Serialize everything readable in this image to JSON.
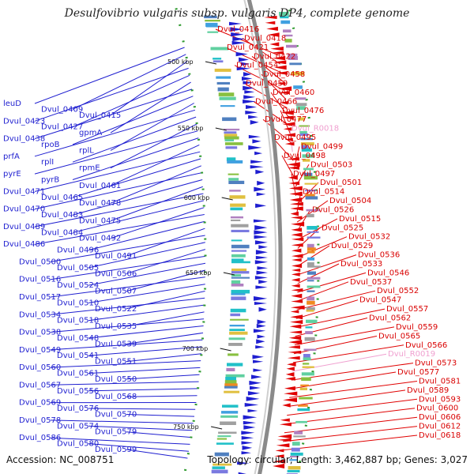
{
  "title": "Desulfovibrio vulgaris subsp. vulgaris DP4, complete genome",
  "footer": {
    "accession": "Accession: NC_008751",
    "topology": "Topology: circular; Length: 3,462,887 bp; Genes: 3,027"
  },
  "ticks": [
    "500 kbp",
    "550 kbp",
    "600 kbp",
    "650 kbp",
    "700 kbp",
    "750 kbp"
  ],
  "labels_left": [
    "leuD",
    "Dvul_0409",
    "Dvul_0415",
    "Dvul_0423",
    "Dvul_0427",
    "gpmA",
    "Dvul_0438",
    "rpoB",
    "rplL",
    "prfA",
    "rplI",
    "rpmE",
    "pyrE",
    "pyrB",
    "Dvul_0461",
    "Dvul_0471",
    "Dvul_0465",
    "Dvul_0478",
    "Dvul_0470",
    "Dvul_0483",
    "Dvul_0475",
    "Dvul_0489",
    "Dvul_0484",
    "Dvul_0492",
    "Dvul_0486",
    "Dvul_0496",
    "Dvul_0491",
    "Dvul_0500",
    "Dvul_0505",
    "Dvul_0506",
    "Dvul_0516",
    "Dvul_0524",
    "Dvul_0507",
    "Dvul_0517",
    "Dvul_0510",
    "Dvul_0522",
    "Dvul_0534",
    "Dvul_0518",
    "Dvul_0535",
    "Dvul_0538",
    "Dvul_0548",
    "Dvul_0539",
    "Dvul_0549",
    "Dvul_0541",
    "Dvul_0551",
    "Dvul_0560",
    "Dvul_0561",
    "Dvul_0550",
    "Dvul_0567",
    "Dvul_0556",
    "Dvul_0568",
    "Dvul_0569",
    "Dvul_0576",
    "Dvul_0570",
    "Dvul_0578",
    "Dvul_0574",
    "Dvul_0579",
    "Dvul_0586",
    "Dvul_0580",
    "Dvul_0599"
  ],
  "labels_right": [
    "Dvul_0416",
    "Dvul_0418",
    "Dvul_0421",
    "Dvul_0422",
    "Dvul_0454",
    "Dvul_0458",
    "Dvul_0459",
    "Dvul_0460",
    "Dvul_0466",
    "Dvul_0476",
    "Dvul_0477",
    "Dvul_R0018",
    "Dvul_0495",
    "Dvul_0499",
    "Dvul_0498",
    "Dvul_0503",
    "Dvul_0497",
    "Dvul_0501",
    "Dvul_0514",
    "Dvul_0504",
    "Dvul_0526",
    "Dvul_0515",
    "Dvul_0525",
    "Dvul_0532",
    "Dvul_0529",
    "Dvul_0536",
    "Dvul_0533",
    "Dvul_0546",
    "Dvul_0537",
    "Dvul_0552",
    "Dvul_0547",
    "Dvul_0557",
    "Dvul_0562",
    "Dvul_0559",
    "Dvul_0565",
    "Dvul_0566",
    "Dvul_R0019",
    "Dvul_0573",
    "Dvul_0577",
    "Dvul_0581",
    "Dvul_0589",
    "Dvul_0593",
    "Dvul_0600",
    "Dvul_0606",
    "Dvul_0612",
    "Dvul_0618"
  ],
  "colors": {
    "forward_cds": "#1f1fd0",
    "reverse_cds": "#e00000",
    "rna": "#f0a0d0",
    "backbone": "#8a8a8a"
  }
}
